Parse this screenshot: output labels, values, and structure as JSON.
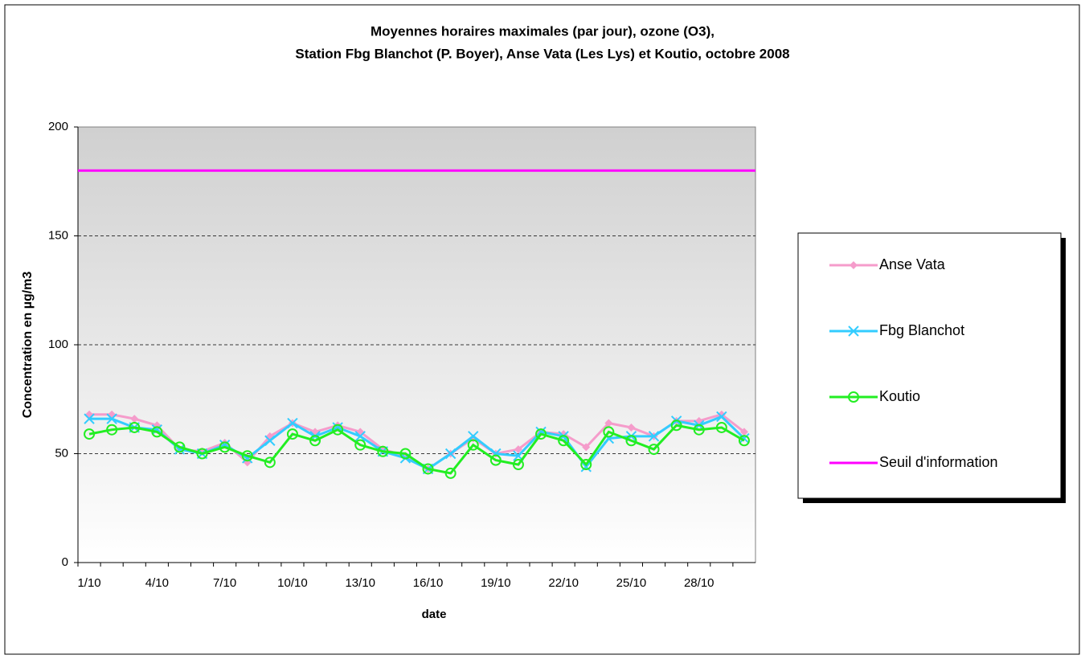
{
  "chart_data": {
    "type": "line",
    "title": [
      "Moyennes horaires maximales (par jour), ozone (O3),",
      "Station Fbg Blanchot (P. Boyer), Anse Vata (Les Lys) et Koutio, octobre 2008"
    ],
    "xlabel": "date",
    "ylabel": "Concentration en µg/m3",
    "categories": [
      "1/10",
      null,
      null,
      "4/10",
      null,
      null,
      "7/10",
      null,
      null,
      "10/10",
      null,
      null,
      "13/10",
      null,
      null,
      "16/10",
      null,
      null,
      "19/10",
      null,
      null,
      "22/10",
      null,
      null,
      "25/10",
      null,
      null,
      "28/10",
      null,
      null
    ],
    "ylim": [
      0,
      200
    ],
    "yticks": [
      0,
      50,
      100,
      150,
      200
    ],
    "grid": true,
    "legend": "right",
    "series": [
      {
        "name": "Anse Vata",
        "color": "#f59ccb",
        "marker": "diamond",
        "values": [
          68,
          68,
          66,
          63,
          52,
          51,
          55,
          46,
          58,
          64,
          60,
          63,
          60,
          52,
          49,
          43,
          50,
          57,
          50,
          52,
          60,
          59,
          53,
          64,
          62,
          58,
          65,
          65,
          68,
          60
        ]
      },
      {
        "name": "Fbg Blanchot",
        "color": "#33ccff",
        "marker": "x",
        "values": [
          66,
          66,
          62,
          61,
          52,
          50,
          54,
          48,
          56,
          64,
          58,
          62,
          58,
          51,
          48,
          43,
          50,
          58,
          50,
          49,
          60,
          58,
          44,
          57,
          58,
          58,
          65,
          63,
          67,
          57
        ]
      },
      {
        "name": "Koutio",
        "color": "#22ee22",
        "marker": "circle",
        "values": [
          59,
          61,
          62,
          60,
          53,
          50,
          53,
          49,
          46,
          59,
          56,
          61,
          54,
          51,
          50,
          43,
          41,
          54,
          47,
          45,
          59,
          56,
          45,
          60,
          56,
          52,
          63,
          61,
          62,
          56
        ]
      },
      {
        "name": "Seuil d'information",
        "color": "#ff00ff",
        "marker": "none",
        "values": [
          180,
          180,
          180,
          180,
          180,
          180,
          180,
          180,
          180,
          180,
          180,
          180,
          180,
          180,
          180,
          180,
          180,
          180,
          180,
          180,
          180,
          180,
          180,
          180,
          180,
          180,
          180,
          180,
          180,
          180
        ]
      }
    ]
  }
}
